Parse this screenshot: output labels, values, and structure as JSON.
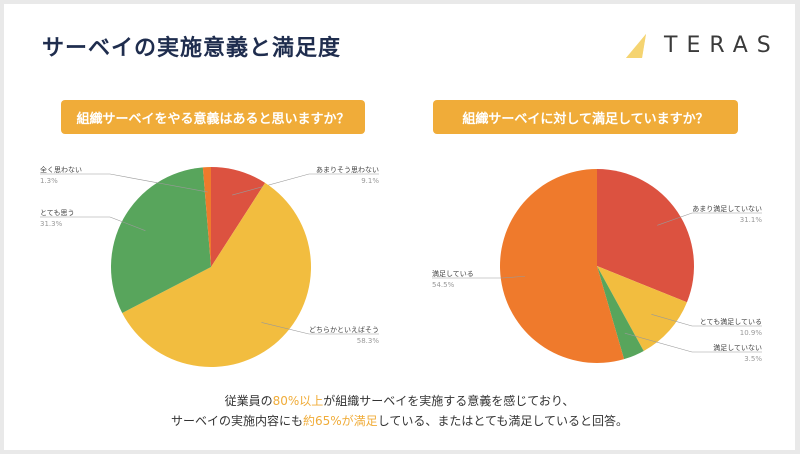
{
  "title": "サーベイの実施意義と満足度",
  "logo": {
    "text": "TERAS"
  },
  "questions": [
    "組織サーベイをやる意義はあると思いますか？",
    "組織サーベイに対して満足していますか？"
  ],
  "summary": {
    "line1": {
      "a": "従業員の",
      "b": "80%以上",
      "c": "が組織サーベイを実施する意義を感じており、"
    },
    "line2": {
      "a": "サーベイの実施内容にも",
      "b": "約65%が満足",
      "c": "している、またはとても満足していると回答。"
    }
  },
  "colors": {
    "accent": "#f0ac39",
    "title": "#1f2d4e"
  },
  "chart_data": [
    {
      "type": "pie",
      "title": "組織サーベイをやる意義はあると思いますか？",
      "slices": [
        {
          "label": "あまりそう思わない",
          "value": 9.1,
          "display": "9.1%",
          "color": "#dc5240"
        },
        {
          "label": "どちらかといえばそう",
          "value": 58.3,
          "display": "58.3%",
          "color": "#f2bd3f"
        },
        {
          "label": "とても思う",
          "value": 31.3,
          "display": "31.3%",
          "color": "#58a55c"
        },
        {
          "label": "全く思わない",
          "value": 1.3,
          "display": "1.3%",
          "color": "#ef7a2c"
        }
      ]
    },
    {
      "type": "pie",
      "title": "組織サーベイに対して満足していますか？",
      "slices": [
        {
          "label": "あまり満足していない",
          "value": 31.1,
          "display": "31.1%",
          "color": "#dc5240"
        },
        {
          "label": "とても満足している",
          "value": 10.9,
          "display": "10.9%",
          "color": "#f2bd3f"
        },
        {
          "label": "満足していない",
          "value": 3.5,
          "display": "3.5%",
          "color": "#58a55c"
        },
        {
          "label": "満足している",
          "value": 54.5,
          "display": "54.5%",
          "color": "#ef7a2c"
        }
      ]
    }
  ]
}
